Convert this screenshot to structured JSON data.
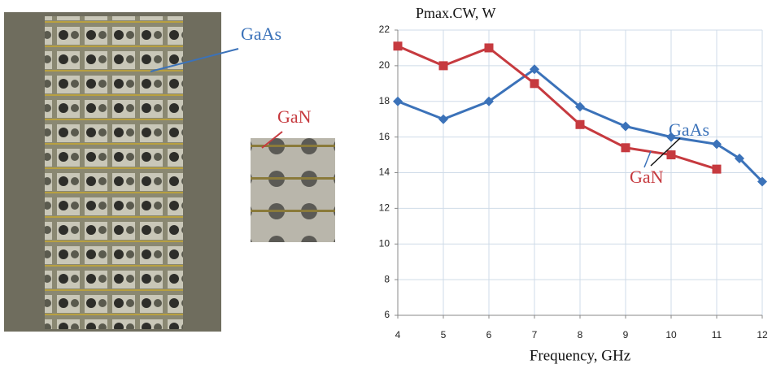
{
  "chart_data": {
    "type": "line",
    "title": "Pmax.CW, W",
    "x_label": "Frequency, GHz",
    "annotations": [
      "GaAs",
      "GaN"
    ],
    "series": [
      {
        "name": "GaAs",
        "color": "#3b72b9",
        "marker": "diamond",
        "x": [
          4,
          5,
          6,
          7,
          8,
          9,
          10,
          11,
          11.5,
          12
        ],
        "values": [
          18,
          17,
          18,
          19.8,
          17.7,
          16.6,
          16,
          15.6,
          14.8,
          13.5
        ]
      },
      {
        "name": "GaN",
        "color": "#c63a3f",
        "marker": "square",
        "x": [
          4,
          5,
          6,
          7,
          8,
          9,
          10,
          11
        ],
        "values": [
          21.1,
          20,
          21,
          19,
          16.7,
          15.4,
          15,
          14.2
        ]
      }
    ],
    "xlim": [
      4,
      12
    ],
    "xticks": [
      4,
      5,
      6,
      7,
      8,
      9,
      10,
      11,
      12
    ],
    "ylim": [
      6,
      22
    ],
    "yticks": [
      6,
      8,
      10,
      12,
      14,
      16,
      18,
      20,
      22
    ],
    "grid": true
  }
}
